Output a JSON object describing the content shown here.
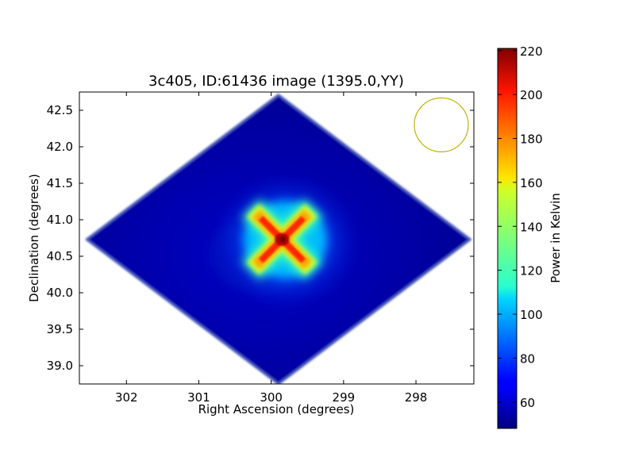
{
  "chart_data": {
    "type": "heatmap",
    "title": "3c405, ID:61436 image (1395.0,YY)",
    "xlabel": "Right Ascension (degrees)",
    "ylabel": "Declination (degrees)",
    "xlim": [
      302.65,
      297.2
    ],
    "ylim": [
      38.75,
      42.75
    ],
    "x_ticks": [
      302,
      301,
      300,
      299,
      298
    ],
    "x_tick_labels": [
      "302",
      "301",
      "300",
      "299",
      "298"
    ],
    "y_ticks": [
      39.0,
      39.5,
      40.0,
      40.5,
      41.0,
      41.5,
      42.0,
      42.5
    ],
    "y_tick_labels": [
      "39.0",
      "39.5",
      "40.0",
      "40.5",
      "41.0",
      "41.5",
      "42.0",
      "42.5"
    ],
    "colormap": "jet",
    "colorbar": {
      "label": "Power in Kelvin",
      "range": [
        48,
        221
      ],
      "ticks": [
        60,
        80,
        100,
        120,
        140,
        160,
        180,
        200,
        220
      ],
      "tick_labels": [
        "60",
        "80",
        "100",
        "120",
        "140",
        "160",
        "180",
        "200",
        "220"
      ]
    },
    "footprint": {
      "shape": "diamond",
      "center": [
        299.9,
        40.73
      ],
      "ra_halfwidth": 2.65,
      "dec_halfheight": 1.98,
      "background_value": 55
    },
    "source": {
      "ra": 299.85,
      "dec": 40.73,
      "peak_value": 221,
      "shape": "four-pointed cross"
    },
    "beam_circle": {
      "ra": 297.65,
      "dec": 42.3,
      "color": "#c2b400"
    },
    "grid": false,
    "legend": "none"
  }
}
